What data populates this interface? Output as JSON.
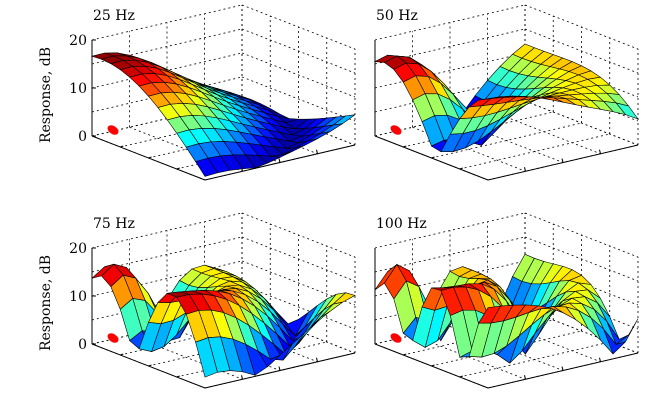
{
  "chart_data": [
    {
      "type": "surface",
      "title": "25 Hz",
      "frequency_hz": 25,
      "zlabel": "Response, dB",
      "zlim": [
        0,
        20
      ],
      "zticks": [
        "0",
        "10",
        "20"
      ],
      "grid": true,
      "colormap": "jet"
    },
    {
      "type": "surface",
      "title": "50 Hz",
      "frequency_hz": 50,
      "zlabel": "",
      "zlim": [
        0,
        20
      ],
      "zticks": [],
      "grid": true,
      "colormap": "jet"
    },
    {
      "type": "surface",
      "title": "75 Hz",
      "frequency_hz": 75,
      "zlabel": "Response, dB",
      "zlim": [
        0,
        20
      ],
      "zticks": [
        "0",
        "10",
        "20"
      ],
      "grid": true,
      "colormap": "jet"
    },
    {
      "type": "surface",
      "title": "100 Hz",
      "frequency_hz": 100,
      "zlabel": "",
      "zlim": [
        0,
        20
      ],
      "zticks": [],
      "grid": true,
      "colormap": "jet"
    }
  ],
  "source_marker_color": "#ff0000"
}
